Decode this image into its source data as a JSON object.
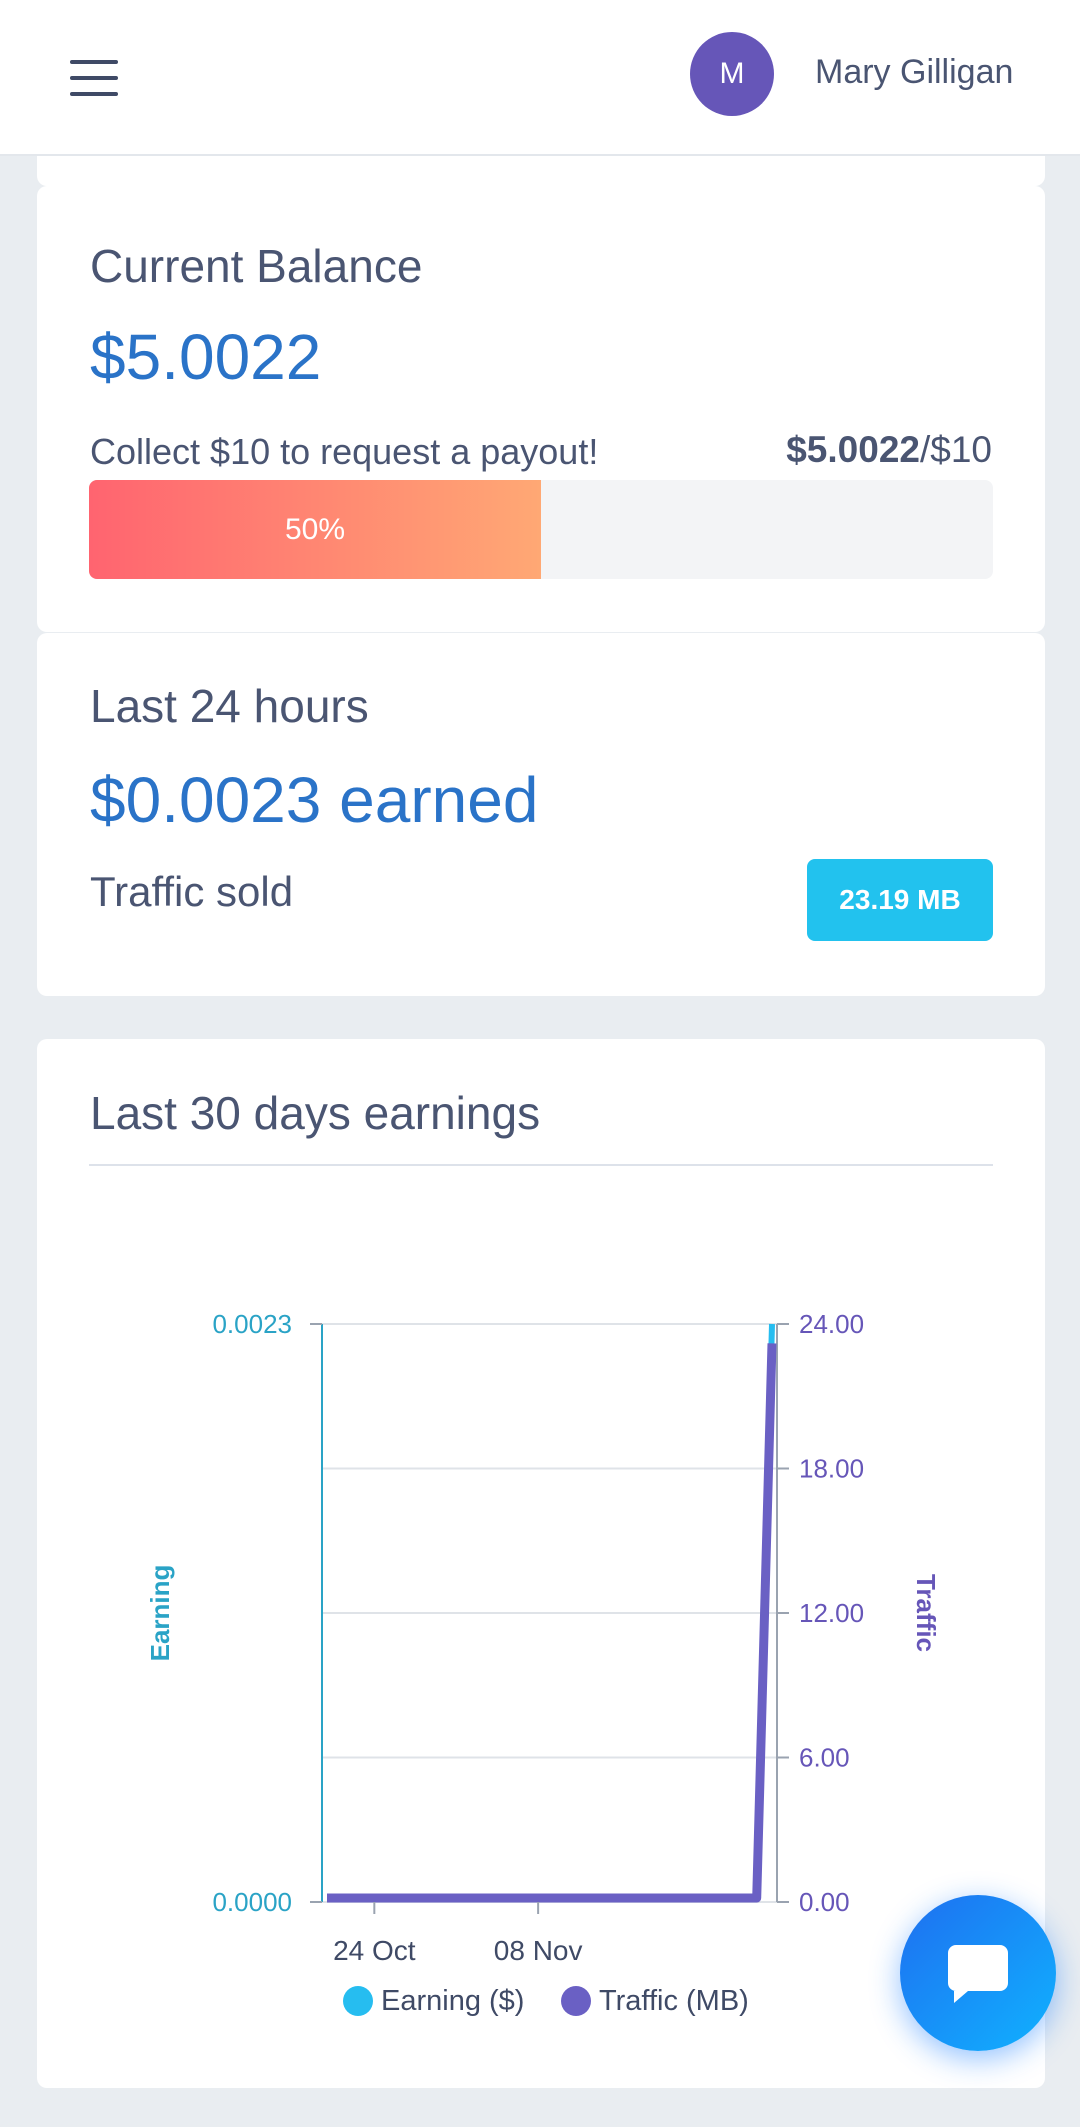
{
  "header": {
    "avatar_initial": "M",
    "user_name": "Mary Gilligan"
  },
  "balance_card": {
    "title": "Current Balance",
    "amount": "$5.0022",
    "collect_text": "Collect $10 to request a payout!",
    "collected": "$5.0022",
    "target": "/$10",
    "progress_label": "50%",
    "progress_fraction": 0.5,
    "progress_colors": [
      "#ff6470",
      "#ffa874"
    ]
  },
  "last24_card": {
    "title": "Last 24 hours",
    "earned": "$0.0023 earned",
    "traffic_label": "Traffic sold",
    "traffic_value": "23.19 MB"
  },
  "chart_card": {
    "title": "Last 30 days earnings"
  },
  "chart_data": {
    "type": "line",
    "x_ticks": [
      "24 Oct",
      "08 Nov"
    ],
    "left_axis": {
      "label": "Earning",
      "ticks": [
        "0.0000",
        "0.0023"
      ],
      "range": [
        0,
        0.0023
      ],
      "color": "#2aa3c6"
    },
    "right_axis": {
      "label": "Traffic",
      "ticks": [
        "0.00",
        "6.00",
        "12.00",
        "18.00",
        "24.00"
      ],
      "range": [
        0,
        24
      ],
      "color": "#6656b8"
    },
    "series": [
      {
        "name": "Earning ($)",
        "color": "#26bdf0",
        "values": [
          0,
          0,
          0,
          0,
          0,
          0,
          0,
          0,
          0,
          0,
          0,
          0,
          0,
          0,
          0,
          0,
          0,
          0,
          0,
          0,
          0,
          0,
          0,
          0,
          0,
          0,
          0,
          0,
          0,
          0.0023
        ]
      },
      {
        "name": "Traffic (MB)",
        "color": "#6a60c4",
        "values": [
          0,
          0,
          0,
          0,
          0,
          0,
          0,
          0,
          0,
          0,
          0,
          0,
          0,
          0,
          0,
          0,
          0,
          0,
          0,
          0,
          0,
          0,
          0,
          0,
          0,
          0,
          0,
          0,
          0,
          23.19
        ]
      }
    ],
    "grid": true,
    "legend": "bottom"
  },
  "colors": {
    "accent_blue": "#2a73c8",
    "badge_cyan": "#22c2ee",
    "avatar_purple": "#6656b8"
  }
}
